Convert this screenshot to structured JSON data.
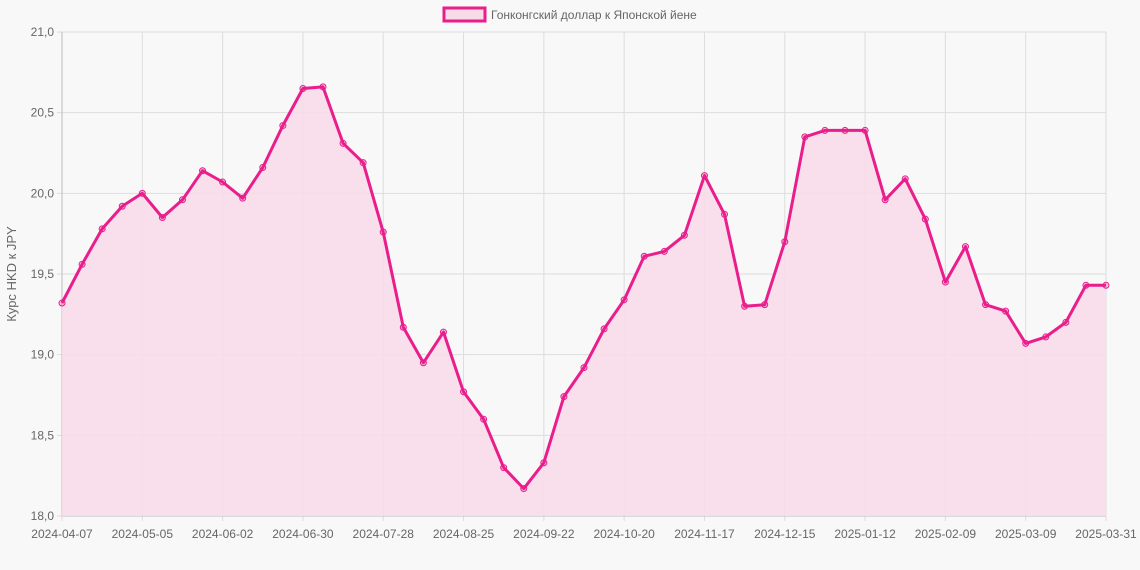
{
  "chart_data": {
    "type": "line",
    "title": "",
    "legend": {
      "position": "top",
      "entries": [
        "Гонконгский доллар к Японской йене"
      ]
    },
    "xlabel": "",
    "ylabel": "Курс HKD к JPY",
    "ylim": [
      18.0,
      21.0
    ],
    "y_ticks": [
      "18,0",
      "18,5",
      "19,0",
      "19,5",
      "20,0",
      "20,5",
      "21,0"
    ],
    "x_tick_labels": [
      "2024-04-07",
      "2024-05-05",
      "2024-06-02",
      "2024-06-30",
      "2024-07-28",
      "2024-08-25",
      "2024-09-22",
      "2024-10-20",
      "2024-11-17",
      "2024-12-15",
      "2025-01-12",
      "2025-02-09",
      "2025-03-09",
      "2025-03-31"
    ],
    "x_tick_indices": [
      0,
      4,
      8,
      12,
      16,
      20,
      24,
      28,
      32,
      36,
      40,
      44,
      48,
      52
    ],
    "grid": true,
    "fill": true,
    "colors": {
      "line": "#e91e8c",
      "fill": "#f8dbe9",
      "grid": "#dddddd",
      "axis": "#bbbbbb"
    },
    "series": [
      {
        "name": "Гонконгский доллар к Японской йене",
        "values": [
          19.32,
          19.56,
          19.78,
          19.92,
          20.0,
          19.85,
          19.96,
          20.14,
          20.07,
          19.97,
          20.16,
          20.42,
          20.65,
          20.66,
          20.31,
          20.19,
          19.76,
          19.17,
          18.95,
          19.14,
          18.77,
          18.6,
          18.3,
          18.17,
          18.33,
          18.74,
          18.92,
          19.16,
          19.34,
          19.61,
          19.64,
          19.74,
          20.11,
          19.87,
          19.3,
          19.31,
          19.7,
          20.35,
          20.39,
          20.39,
          20.39,
          19.96,
          20.09,
          19.84,
          19.45,
          19.67,
          19.31,
          19.27,
          19.07,
          19.11,
          19.2,
          19.43,
          19.43
        ]
      }
    ]
  }
}
